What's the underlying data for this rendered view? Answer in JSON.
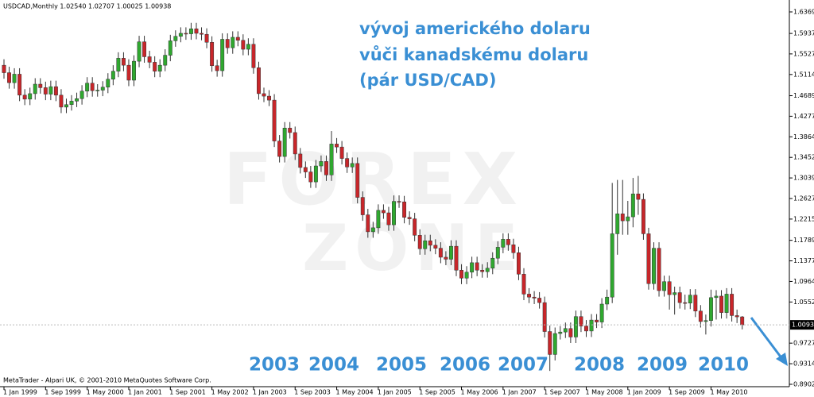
{
  "chart_data": {
    "type": "candlestick",
    "header": "USDCAD,Monthly  1.02540 1.02707 1.00025 1.00938",
    "title_lines": [
      "vývoj amerického dolaru",
      "vůči kanadskému dolaru",
      "(pár USD/CAD)"
    ],
    "annotations": [
      "2003",
      "2004",
      "2005",
      "2006",
      "2007",
      "2008",
      "2009",
      "2010"
    ],
    "footer": "MetaTrader - Alpari UK, © 2001-2010 MetaQuotes Software Corp.",
    "watermark": [
      "FOREX",
      "ZONE"
    ],
    "up_color": "#2fa82f",
    "down_color": "#c8262a",
    "categories": [
      "1 Jan 1999",
      null,
      null,
      null,
      null,
      null,
      null,
      null,
      "1 Sep 1999",
      null,
      null,
      null,
      null,
      null,
      null,
      null,
      "1 May 2000",
      null,
      null,
      null,
      null,
      null,
      null,
      null,
      "1 Jan 2001",
      null,
      null,
      null,
      null,
      null,
      null,
      null,
      "1 Sep 2001",
      null,
      null,
      null,
      null,
      null,
      null,
      null,
      "1 May 2002",
      null,
      null,
      null,
      null,
      null,
      null,
      null,
      "1 Jan 2003",
      null,
      null,
      null,
      null,
      null,
      null,
      null,
      "1 Sep 2003",
      null,
      null,
      null,
      null,
      null,
      null,
      null,
      "1 May 2004",
      null,
      null,
      null,
      null,
      null,
      null,
      null,
      "1 Jan 2005",
      null,
      null,
      null,
      null,
      null,
      null,
      null,
      "1 Sep 2005",
      null,
      null,
      null,
      null,
      null,
      null,
      null,
      "1 May 2006",
      null,
      null,
      null,
      null,
      null,
      null,
      null,
      "1 Jan 2007",
      null,
      null,
      null,
      null,
      null,
      null,
      null,
      "1 Sep 2007",
      null,
      null,
      null,
      null,
      null,
      null,
      null,
      "1 May 2008",
      null,
      null,
      null,
      null,
      null,
      null,
      null,
      "1 Jan 2009",
      null,
      null,
      null,
      null,
      null,
      null,
      null,
      "1 Sep 2009",
      null,
      null,
      null,
      null,
      null,
      null,
      null,
      "1 May 2010",
      null,
      null,
      null,
      null,
      null,
      null
    ],
    "open": [
      1.53,
      1.515,
      1.495,
      1.512,
      1.47,
      1.462,
      1.473,
      1.492,
      1.485,
      1.472,
      1.487,
      1.47,
      1.446,
      1.451,
      1.458,
      1.463,
      1.478,
      1.494,
      1.479,
      1.48,
      1.486,
      1.502,
      1.518,
      1.544,
      1.53,
      1.5,
      1.538,
      1.577,
      1.547,
      1.536,
      1.518,
      1.53,
      1.55,
      1.579,
      1.588,
      1.594,
      1.593,
      1.603,
      1.594,
      1.592,
      1.576,
      1.529,
      1.519,
      1.582,
      1.565,
      1.586,
      1.58,
      1.562,
      1.572,
      1.525,
      1.473,
      1.468,
      1.46,
      1.378,
      1.347,
      1.404,
      1.395,
      1.352,
      1.325,
      1.316,
      1.296,
      1.328,
      1.337,
      1.31,
      1.372,
      1.366,
      1.343,
      1.326,
      1.333,
      1.265,
      1.23,
      1.196,
      1.204,
      1.239,
      1.234,
      1.21,
      1.257,
      1.256,
      1.225,
      1.222,
      1.189,
      1.162,
      1.178,
      1.169,
      1.163,
      1.145,
      1.141,
      1.167,
      1.119,
      1.103,
      1.115,
      1.134,
      1.119,
      1.116,
      1.123,
      1.143,
      1.165,
      1.181,
      1.17,
      1.154,
      1.111,
      1.071,
      1.065,
      1.063,
      1.054,
      0.996,
      0.95,
      0.992,
      0.995,
      1.002,
      0.985,
      1.026,
      1.007,
      0.997,
      1.019,
      1.015,
      1.051,
      1.065,
      1.192,
      1.232,
      1.218,
      1.226,
      1.272,
      1.261,
      1.192,
      1.092,
      1.163,
      1.078,
      1.096,
      1.07,
      1.074,
      1.054,
      1.053,
      1.069,
      1.037,
      1.016,
      1.018,
      1.064,
      1.067,
      1.034,
      1.071,
      1.028,
      1.0254
    ],
    "high": [
      1.542,
      1.527,
      1.524,
      1.524,
      1.482,
      1.485,
      1.504,
      1.504,
      1.497,
      1.499,
      1.499,
      1.482,
      1.463,
      1.47,
      1.475,
      1.49,
      1.506,
      1.506,
      1.492,
      1.498,
      1.514,
      1.53,
      1.556,
      1.556,
      1.542,
      1.55,
      1.589,
      1.589,
      1.559,
      1.548,
      1.542,
      1.562,
      1.591,
      1.6,
      1.606,
      1.606,
      1.615,
      1.615,
      1.606,
      1.604,
      1.588,
      1.541,
      1.594,
      1.594,
      1.598,
      1.598,
      1.592,
      1.584,
      1.584,
      1.537,
      1.485,
      1.48,
      1.472,
      1.39,
      1.416,
      1.416,
      1.407,
      1.364,
      1.337,
      1.328,
      1.34,
      1.349,
      1.349,
      1.398,
      1.384,
      1.378,
      1.355,
      1.345,
      1.345,
      1.277,
      1.242,
      1.216,
      1.251,
      1.251,
      1.246,
      1.269,
      1.269,
      1.268,
      1.237,
      1.234,
      1.201,
      1.19,
      1.19,
      1.181,
      1.175,
      1.157,
      1.179,
      1.179,
      1.131,
      1.127,
      1.146,
      1.146,
      1.131,
      1.135,
      1.155,
      1.177,
      1.193,
      1.193,
      1.182,
      1.166,
      1.123,
      1.083,
      1.077,
      1.075,
      1.066,
      1.008,
      1.004,
      1.007,
      1.014,
      1.014,
      1.038,
      1.038,
      1.019,
      1.031,
      1.031,
      1.063,
      1.08,
      1.294,
      1.3,
      1.3,
      1.258,
      1.304,
      1.308,
      1.273,
      1.204,
      1.175,
      1.175,
      1.108,
      1.108,
      1.086,
      1.086,
      1.07,
      1.081,
      1.081,
      1.049,
      1.03,
      1.08,
      1.079,
      1.079,
      1.083,
      1.083,
      1.04,
      1.02707
    ],
    "low": [
      1.503,
      1.483,
      1.483,
      1.458,
      1.45,
      1.45,
      1.461,
      1.473,
      1.46,
      1.46,
      1.458,
      1.434,
      1.434,
      1.439,
      1.446,
      1.451,
      1.466,
      1.467,
      1.467,
      1.468,
      1.474,
      1.49,
      1.506,
      1.518,
      1.488,
      1.488,
      1.526,
      1.535,
      1.524,
      1.506,
      1.506,
      1.518,
      1.538,
      1.567,
      1.576,
      1.581,
      1.581,
      1.582,
      1.58,
      1.564,
      1.517,
      1.507,
      1.507,
      1.553,
      1.553,
      1.568,
      1.55,
      1.55,
      1.513,
      1.461,
      1.456,
      1.448,
      1.366,
      1.335,
      1.335,
      1.383,
      1.34,
      1.313,
      1.304,
      1.284,
      1.284,
      1.316,
      1.298,
      1.298,
      1.354,
      1.331,
      1.314,
      1.314,
      1.253,
      1.218,
      1.184,
      1.184,
      1.192,
      1.222,
      1.198,
      1.198,
      1.244,
      1.213,
      1.21,
      1.177,
      1.15,
      1.15,
      1.157,
      1.151,
      1.133,
      1.129,
      1.129,
      1.107,
      1.091,
      1.091,
      1.103,
      1.107,
      1.104,
      1.104,
      1.111,
      1.131,
      1.153,
      1.158,
      1.142,
      1.099,
      1.059,
      1.053,
      1.051,
      1.042,
      0.984,
      0.917,
      0.938,
      0.98,
      0.983,
      0.973,
      0.973,
      0.995,
      0.985,
      0.985,
      1.003,
      1.003,
      1.039,
      1.053,
      1.15,
      1.19,
      1.19,
      1.205,
      1.23,
      1.18,
      1.08,
      1.08,
      1.066,
      1.066,
      1.04,
      1.03,
      1.042,
      1.04,
      1.041,
      1.025,
      1.004,
      0.99,
      1.006,
      1.02,
      1.022,
      1.022,
      1.016,
      1.013,
      1.00025
    ],
    "close": [
      1.515,
      1.495,
      1.512,
      1.47,
      1.462,
      1.473,
      1.492,
      1.485,
      1.472,
      1.487,
      1.47,
      1.446,
      1.451,
      1.458,
      1.463,
      1.478,
      1.494,
      1.479,
      1.48,
      1.486,
      1.502,
      1.518,
      1.544,
      1.53,
      1.5,
      1.538,
      1.577,
      1.547,
      1.536,
      1.518,
      1.53,
      1.55,
      1.579,
      1.588,
      1.594,
      1.593,
      1.603,
      1.594,
      1.592,
      1.576,
      1.529,
      1.519,
      1.582,
      1.565,
      1.586,
      1.58,
      1.562,
      1.572,
      1.525,
      1.473,
      1.468,
      1.46,
      1.378,
      1.347,
      1.404,
      1.395,
      1.352,
      1.325,
      1.316,
      1.296,
      1.328,
      1.337,
      1.31,
      1.372,
      1.366,
      1.343,
      1.326,
      1.333,
      1.265,
      1.23,
      1.196,
      1.204,
      1.239,
      1.234,
      1.21,
      1.257,
      1.256,
      1.225,
      1.222,
      1.189,
      1.162,
      1.178,
      1.169,
      1.163,
      1.145,
      1.141,
      1.167,
      1.119,
      1.103,
      1.115,
      1.134,
      1.119,
      1.116,
      1.123,
      1.143,
      1.165,
      1.181,
      1.17,
      1.154,
      1.111,
      1.071,
      1.065,
      1.063,
      1.054,
      0.996,
      0.95,
      0.992,
      0.995,
      1.002,
      0.985,
      1.026,
      1.007,
      0.997,
      1.019,
      1.015,
      1.051,
      1.065,
      1.192,
      1.232,
      1.218,
      1.226,
      1.272,
      1.261,
      1.192,
      1.092,
      1.163,
      1.078,
      1.096,
      1.07,
      1.074,
      1.054,
      1.053,
      1.069,
      1.037,
      1.016,
      1.018,
      1.064,
      1.067,
      1.034,
      1.071,
      1.028,
      1.0254,
      1.00938
    ],
    "ylim": [
      0.8854,
      1.6576
    ],
    "yticks": [
      {
        "value": 1.6369,
        "label": "1.63690"
      },
      {
        "value": 1.5937,
        "label": "1.59370"
      },
      {
        "value": 1.5527,
        "label": "1.55270"
      },
      {
        "value": 1.5114,
        "label": "1.51140"
      },
      {
        "value": 1.4689,
        "label": "1.46890"
      },
      {
        "value": 1.4277,
        "label": "1.42770"
      },
      {
        "value": 1.38645,
        "label": "1.38645"
      },
      {
        "value": 1.3452,
        "label": "1.34520"
      },
      {
        "value": 1.30399,
        "label": "1.30399"
      },
      {
        "value": 1.2627,
        "label": "1.26270"
      },
      {
        "value": 1.2215,
        "label": "1.22150"
      },
      {
        "value": 1.1789,
        "label": "1.17890"
      },
      {
        "value": 1.1377,
        "label": "1.13770"
      },
      {
        "value": 1.09645,
        "label": "1.09645"
      },
      {
        "value": 1.0552,
        "label": "1.05520"
      },
      {
        "value": 0.9727,
        "label": "0.97270"
      },
      {
        "value": 0.93145,
        "label": "0.93145"
      },
      {
        "value": 0.8902,
        "label": "0.89020"
      }
    ]
  }
}
